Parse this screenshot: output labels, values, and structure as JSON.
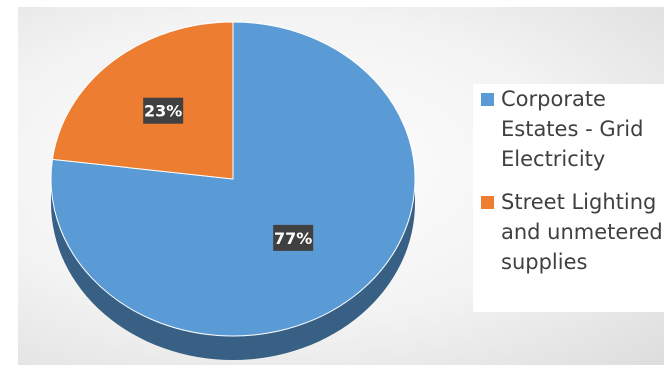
{
  "chart_data": {
    "type": "pie",
    "title": "",
    "slices": [
      {
        "label": "Corporate Estates - Grid Electricity",
        "value": 77,
        "display": "77%",
        "color": "#5b9bd5"
      },
      {
        "label": "Street Lighting and unmetered supplies",
        "value": 23,
        "display": "23%",
        "color": "#ed7d31"
      }
    ],
    "legend": {
      "placement": "right"
    },
    "style": "3d"
  },
  "legend_items": [
    {
      "label": "Corporate Estates - Grid Electricity",
      "color": "#5b9bd5"
    },
    {
      "label": "Street Lighting and unmetered supplies",
      "color": "#ed7d31"
    }
  ]
}
